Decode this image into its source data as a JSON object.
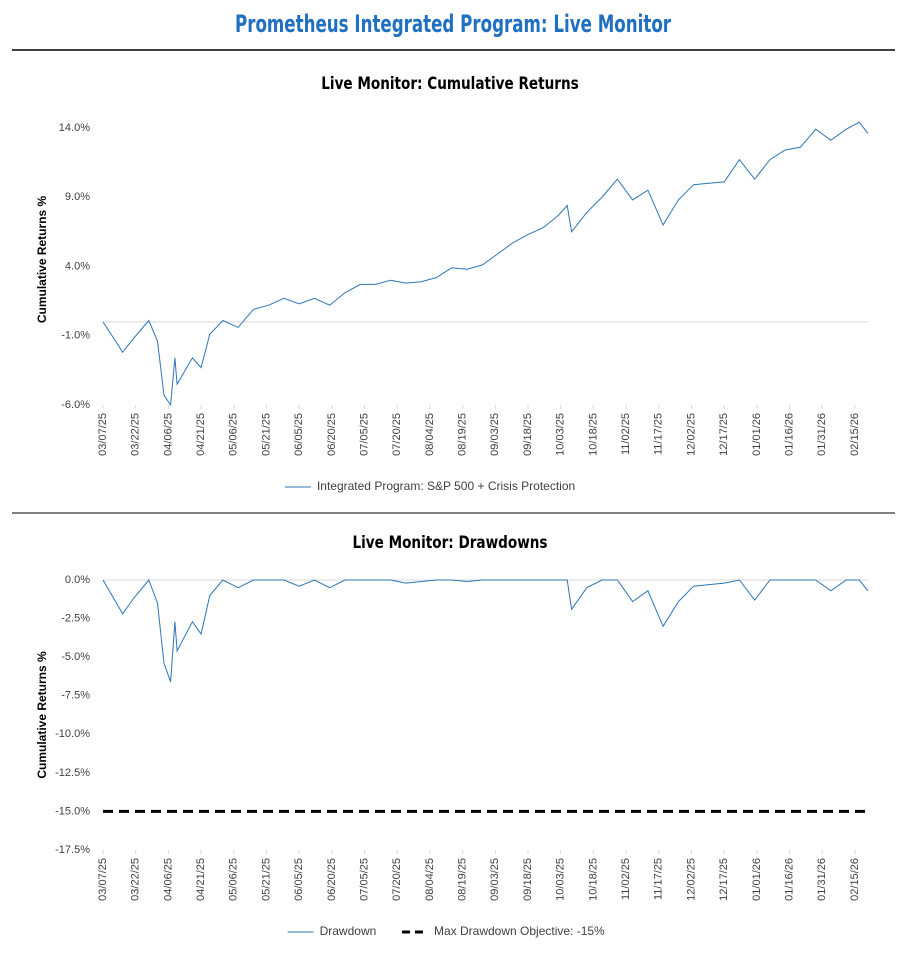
{
  "page_title": "Prometheus Integrated Program: Live Monitor",
  "chart_data": [
    {
      "type": "line",
      "title": "Live Monitor: Cumulative Returns",
      "y_label": "Cumulative Returns %",
      "x": [
        "2025-03-07",
        "2025-03-14",
        "2025-03-16",
        "2025-03-21",
        "2025-03-28",
        "2025-04-01",
        "2025-04-04",
        "2025-04-07",
        "2025-04-09",
        "2025-04-10",
        "2025-04-17",
        "2025-04-21",
        "2025-04-25",
        "2025-05-01",
        "2025-05-08",
        "2025-05-15",
        "2025-05-22",
        "2025-05-29",
        "2025-06-05",
        "2025-06-12",
        "2025-06-19",
        "2025-06-26",
        "2025-07-03",
        "2025-07-10",
        "2025-07-17",
        "2025-07-24",
        "2025-07-31",
        "2025-08-07",
        "2025-08-14",
        "2025-08-21",
        "2025-08-28",
        "2025-09-04",
        "2025-09-11",
        "2025-09-18",
        "2025-09-25",
        "2025-10-02",
        "2025-10-06",
        "2025-10-08",
        "2025-10-15",
        "2025-10-22",
        "2025-10-29",
        "2025-11-05",
        "2025-11-12",
        "2025-11-19",
        "2025-11-26",
        "2025-12-03",
        "2025-12-10",
        "2025-12-17",
        "2025-12-24",
        "2025-12-31",
        "2026-01-07",
        "2026-01-14",
        "2026-01-21",
        "2026-01-28",
        "2026-02-04",
        "2026-02-11",
        "2026-02-17",
        "2026-02-21"
      ],
      "series": [
        {
          "name": "Integrated Program: S&P 500 + Crisis Protection",
          "color": "#2e75b6",
          "values": [
            0,
            -1.7,
            -2.2,
            -1.2,
            0.1,
            -1.4,
            -5.3,
            -6.0,
            -2.6,
            -4.5,
            -2.6,
            -3.3,
            -0.9,
            0.1,
            -0.4,
            0.9,
            1.2,
            1.7,
            1.3,
            1.7,
            1.2,
            2.1,
            2.7,
            2.7,
            3.0,
            2.8,
            2.9,
            3.2,
            3.9,
            3.8,
            4.1,
            4.9,
            5.7,
            6.3,
            6.8,
            7.7,
            8.4,
            6.5,
            7.9,
            9.0,
            10.3,
            8.8,
            9.5,
            7.0,
            8.8,
            9.9,
            10.0,
            10.1,
            11.7,
            10.3,
            11.7,
            12.4,
            12.6,
            13.9,
            13.1,
            13.9,
            14.4,
            13.6
          ]
        }
      ],
      "xlim": [
        "2025-03-07",
        "2026-02-21"
      ],
      "ylim": [
        -6,
        15
      ],
      "yticks": [
        {
          "value": -6,
          "label": "-6.0%"
        },
        {
          "value": -1,
          "label": "-1.0%"
        },
        {
          "value": 4,
          "label": "4.0%"
        },
        {
          "value": 9,
          "label": "9.0%"
        },
        {
          "value": 14,
          "label": "14.0%"
        }
      ],
      "xticks": [
        {
          "value": "2025-03-07",
          "label": "03/07/25"
        },
        {
          "value": "2025-03-22",
          "label": "03/22/25"
        },
        {
          "value": "2025-04-06",
          "label": "04/06/25"
        },
        {
          "value": "2025-04-21",
          "label": "04/21/25"
        },
        {
          "value": "2025-05-06",
          "label": "05/06/25"
        },
        {
          "value": "2025-05-21",
          "label": "05/21/25"
        },
        {
          "value": "2025-06-05",
          "label": "06/05/25"
        },
        {
          "value": "2025-06-20",
          "label": "06/20/25"
        },
        {
          "value": "2025-07-05",
          "label": "07/05/25"
        },
        {
          "value": "2025-07-20",
          "label": "07/20/25"
        },
        {
          "value": "2025-08-04",
          "label": "08/04/25"
        },
        {
          "value": "2025-08-19",
          "label": "08/19/25"
        },
        {
          "value": "2025-09-03",
          "label": "09/03/25"
        },
        {
          "value": "2025-09-18",
          "label": "09/18/25"
        },
        {
          "value": "2025-10-03",
          "label": "10/03/25"
        },
        {
          "value": "2025-10-18",
          "label": "10/18/25"
        },
        {
          "value": "2025-11-02",
          "label": "11/02/25"
        },
        {
          "value": "2025-11-17",
          "label": "11/17/25"
        },
        {
          "value": "2025-12-02",
          "label": "12/02/25"
        },
        {
          "value": "2025-12-17",
          "label": "12/17/25"
        },
        {
          "value": "2026-01-01",
          "label": "01/01/26"
        },
        {
          "value": "2026-01-16",
          "label": "01/16/26"
        },
        {
          "value": "2026-01-31",
          "label": "01/31/26"
        },
        {
          "value": "2026-02-15",
          "label": "02/15/26"
        }
      ],
      "reference_lines": []
    },
    {
      "type": "line",
      "title": "Live Monitor: Drawdowns",
      "y_label": "Cumulative Returns %",
      "x": [
        "2025-03-07",
        "2025-03-14",
        "2025-03-16",
        "2025-03-21",
        "2025-03-28",
        "2025-04-01",
        "2025-04-04",
        "2025-04-07",
        "2025-04-09",
        "2025-04-10",
        "2025-04-17",
        "2025-04-21",
        "2025-04-25",
        "2025-05-01",
        "2025-05-08",
        "2025-05-15",
        "2025-05-22",
        "2025-05-29",
        "2025-06-05",
        "2025-06-12",
        "2025-06-19",
        "2025-06-26",
        "2025-07-03",
        "2025-07-10",
        "2025-07-17",
        "2025-07-24",
        "2025-07-31",
        "2025-08-07",
        "2025-08-14",
        "2025-08-21",
        "2025-08-28",
        "2025-09-04",
        "2025-09-11",
        "2025-09-18",
        "2025-09-25",
        "2025-10-02",
        "2025-10-06",
        "2025-10-08",
        "2025-10-15",
        "2025-10-22",
        "2025-10-29",
        "2025-11-05",
        "2025-11-12",
        "2025-11-19",
        "2025-11-26",
        "2025-12-03",
        "2025-12-10",
        "2025-12-17",
        "2025-12-24",
        "2025-12-31",
        "2026-01-07",
        "2026-01-14",
        "2026-01-21",
        "2026-01-28",
        "2026-02-04",
        "2026-02-11",
        "2026-02-17",
        "2026-02-21"
      ],
      "series": [
        {
          "name": "Drawdown",
          "color": "#2e75b6",
          "values": [
            0,
            -1.7,
            -2.2,
            -1.2,
            0,
            -1.5,
            -5.4,
            -6.6,
            -2.7,
            -4.6,
            -2.7,
            -3.5,
            -1.0,
            0,
            -0.5,
            0,
            0,
            0,
            -0.4,
            0,
            -0.5,
            0,
            0,
            0,
            0,
            -0.2,
            -0.1,
            0,
            0,
            -0.1,
            0,
            0,
            0,
            0,
            0,
            0,
            0,
            -1.9,
            -0.5,
            0,
            0,
            -1.4,
            -0.7,
            -3.0,
            -1.4,
            -0.4,
            -0.3,
            -0.2,
            0,
            -1.3,
            0,
            0,
            0,
            0,
            -0.7,
            0,
            0,
            -0.7
          ]
        }
      ],
      "xlim": [
        "2025-03-07",
        "2026-02-21"
      ],
      "ylim": [
        -17.5,
        0
      ],
      "yticks": [
        {
          "value": 0,
          "label": "0.0%"
        },
        {
          "value": -2.5,
          "label": "-2.5%"
        },
        {
          "value": -5,
          "label": "-5.0%"
        },
        {
          "value": -7.5,
          "label": "-7.5%"
        },
        {
          "value": -10,
          "label": "-10.0%"
        },
        {
          "value": -12.5,
          "label": "-12.5%"
        },
        {
          "value": -15,
          "label": "-15.0%"
        },
        {
          "value": -17.5,
          "label": "-17.5%"
        }
      ],
      "xticks": [
        {
          "value": "2025-03-07",
          "label": "03/07/25"
        },
        {
          "value": "2025-03-22",
          "label": "03/22/25"
        },
        {
          "value": "2025-04-06",
          "label": "04/06/25"
        },
        {
          "value": "2025-04-21",
          "label": "04/21/25"
        },
        {
          "value": "2025-05-06",
          "label": "05/06/25"
        },
        {
          "value": "2025-05-21",
          "label": "05/21/25"
        },
        {
          "value": "2025-06-05",
          "label": "06/05/25"
        },
        {
          "value": "2025-06-20",
          "label": "06/20/25"
        },
        {
          "value": "2025-07-05",
          "label": "07/05/25"
        },
        {
          "value": "2025-07-20",
          "label": "07/20/25"
        },
        {
          "value": "2025-08-04",
          "label": "08/04/25"
        },
        {
          "value": "2025-08-19",
          "label": "08/19/25"
        },
        {
          "value": "2025-09-03",
          "label": "09/03/25"
        },
        {
          "value": "2025-09-18",
          "label": "09/18/25"
        },
        {
          "value": "2025-10-03",
          "label": "10/03/25"
        },
        {
          "value": "2025-10-18",
          "label": "10/18/25"
        },
        {
          "value": "2025-11-02",
          "label": "11/02/25"
        },
        {
          "value": "2025-11-17",
          "label": "11/17/25"
        },
        {
          "value": "2025-12-02",
          "label": "12/02/25"
        },
        {
          "value": "2025-12-17",
          "label": "12/17/25"
        },
        {
          "value": "2026-01-01",
          "label": "01/01/26"
        },
        {
          "value": "2026-01-16",
          "label": "01/16/26"
        },
        {
          "value": "2026-01-31",
          "label": "01/31/26"
        },
        {
          "value": "2026-02-15",
          "label": "02/15/26"
        }
      ],
      "reference_lines": [
        {
          "name": "Max Drawdown Objective: -15%",
          "value": -15,
          "color": "#000000",
          "dash": true
        }
      ]
    }
  ]
}
